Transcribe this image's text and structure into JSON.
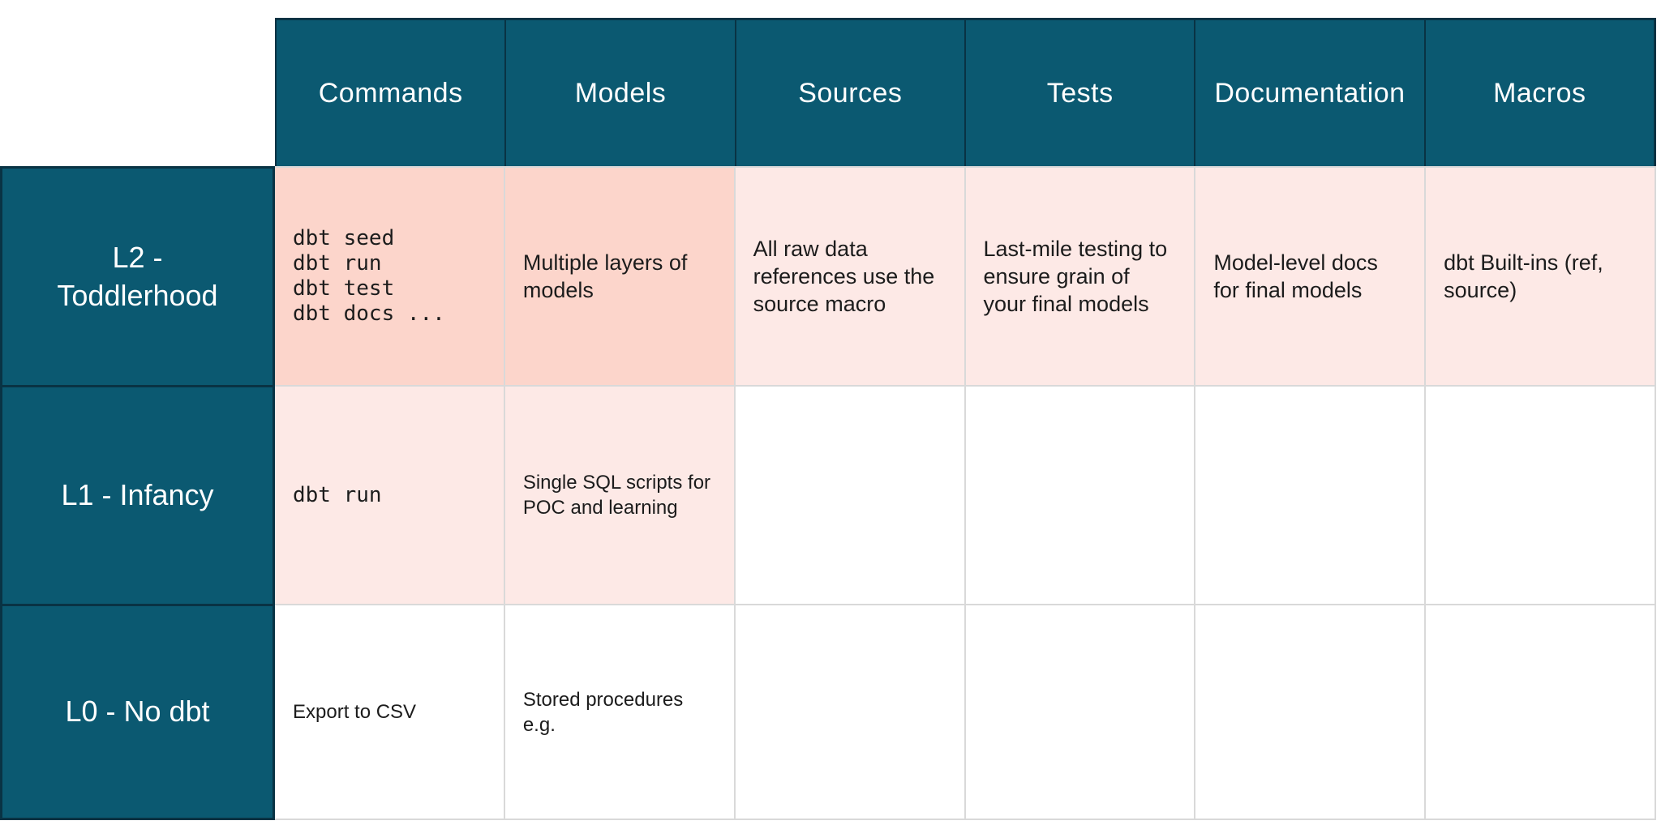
{
  "colors": {
    "teal": "#0B5971",
    "dark-line": "#093344",
    "pink-strong": "#FCD5CB",
    "pink-soft": "#FDE9E6",
    "grid-line": "#D9D9D9",
    "ink": "#1C1C1C",
    "header-text": "#FFFFFF"
  },
  "table": {
    "columns": [
      "Commands",
      "Models",
      "Sources",
      "Tests",
      "Documentation",
      "Macros"
    ],
    "rows": [
      {
        "label": "L2 -\nToddlerhood",
        "cells": [
          {
            "text": "dbt seed\ndbt run\ndbt test\ndbt docs ..."
          },
          {
            "text": "Multiple layers of\nmodels"
          },
          {
            "text": "All raw data\nreferences use the\nsource macro"
          },
          {
            "text": "Last-mile testing to\nensure grain of\nyour final models"
          },
          {
            "text": "Model-level docs\nfor final models"
          },
          {
            "text": "dbt Built-ins (ref,\nsource)"
          }
        ]
      },
      {
        "label": "L1 - Infancy",
        "cells": [
          {
            "text": "dbt run"
          },
          {
            "text": "Single SQL scripts for\nPOC and learning"
          },
          {
            "text": ""
          },
          {
            "text": ""
          },
          {
            "text": ""
          },
          {
            "text": ""
          }
        ]
      },
      {
        "label": "L0 - No dbt",
        "cells": [
          {
            "text": "Export to CSV"
          },
          {
            "text": "Stored procedures\ne.g."
          },
          {
            "text": ""
          },
          {
            "text": ""
          },
          {
            "text": ""
          },
          {
            "text": ""
          }
        ]
      }
    ]
  }
}
